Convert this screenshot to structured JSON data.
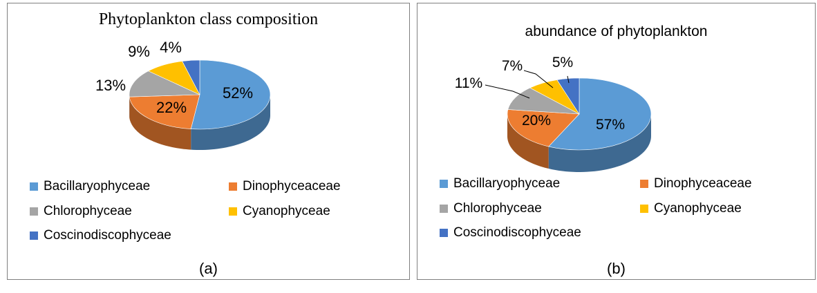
{
  "colors": {
    "Bacillaryophyceae": "#5b9bd5",
    "Dinophyceaceae": "#ed7d31",
    "Chlorophyceae": "#a5a5a5",
    "Cyanophyceae": "#ffc000",
    "Coscinodiscophyceae": "#4472c4"
  },
  "chart_data": [
    {
      "type": "pie",
      "title": "Phytoplankton class composition",
      "categories": [
        "Bacillaryophyceae",
        "Dinophyceaceae",
        "Chlorophyceae",
        "Cyanophyceae",
        "Coscinodiscophyceae"
      ],
      "values": [
        52,
        22,
        13,
        9,
        4
      ],
      "data_labels": [
        "52%",
        "22%",
        "13%",
        "9%",
        "4%"
      ],
      "legend_position": "bottom",
      "panel_label": "(a)"
    },
    {
      "type": "pie",
      "title": "abundance of phytoplankton",
      "categories": [
        "Bacillaryophyceae",
        "Dinophyceaceae",
        "Chlorophyceae",
        "Cyanophyceae",
        "Coscinodiscophyceae"
      ],
      "values": [
        57,
        20,
        11,
        7,
        5
      ],
      "data_labels": [
        "57%",
        "20%",
        "11%",
        "7%",
        "5%"
      ],
      "legend_position": "bottom",
      "panel_label": "(b)"
    }
  ]
}
